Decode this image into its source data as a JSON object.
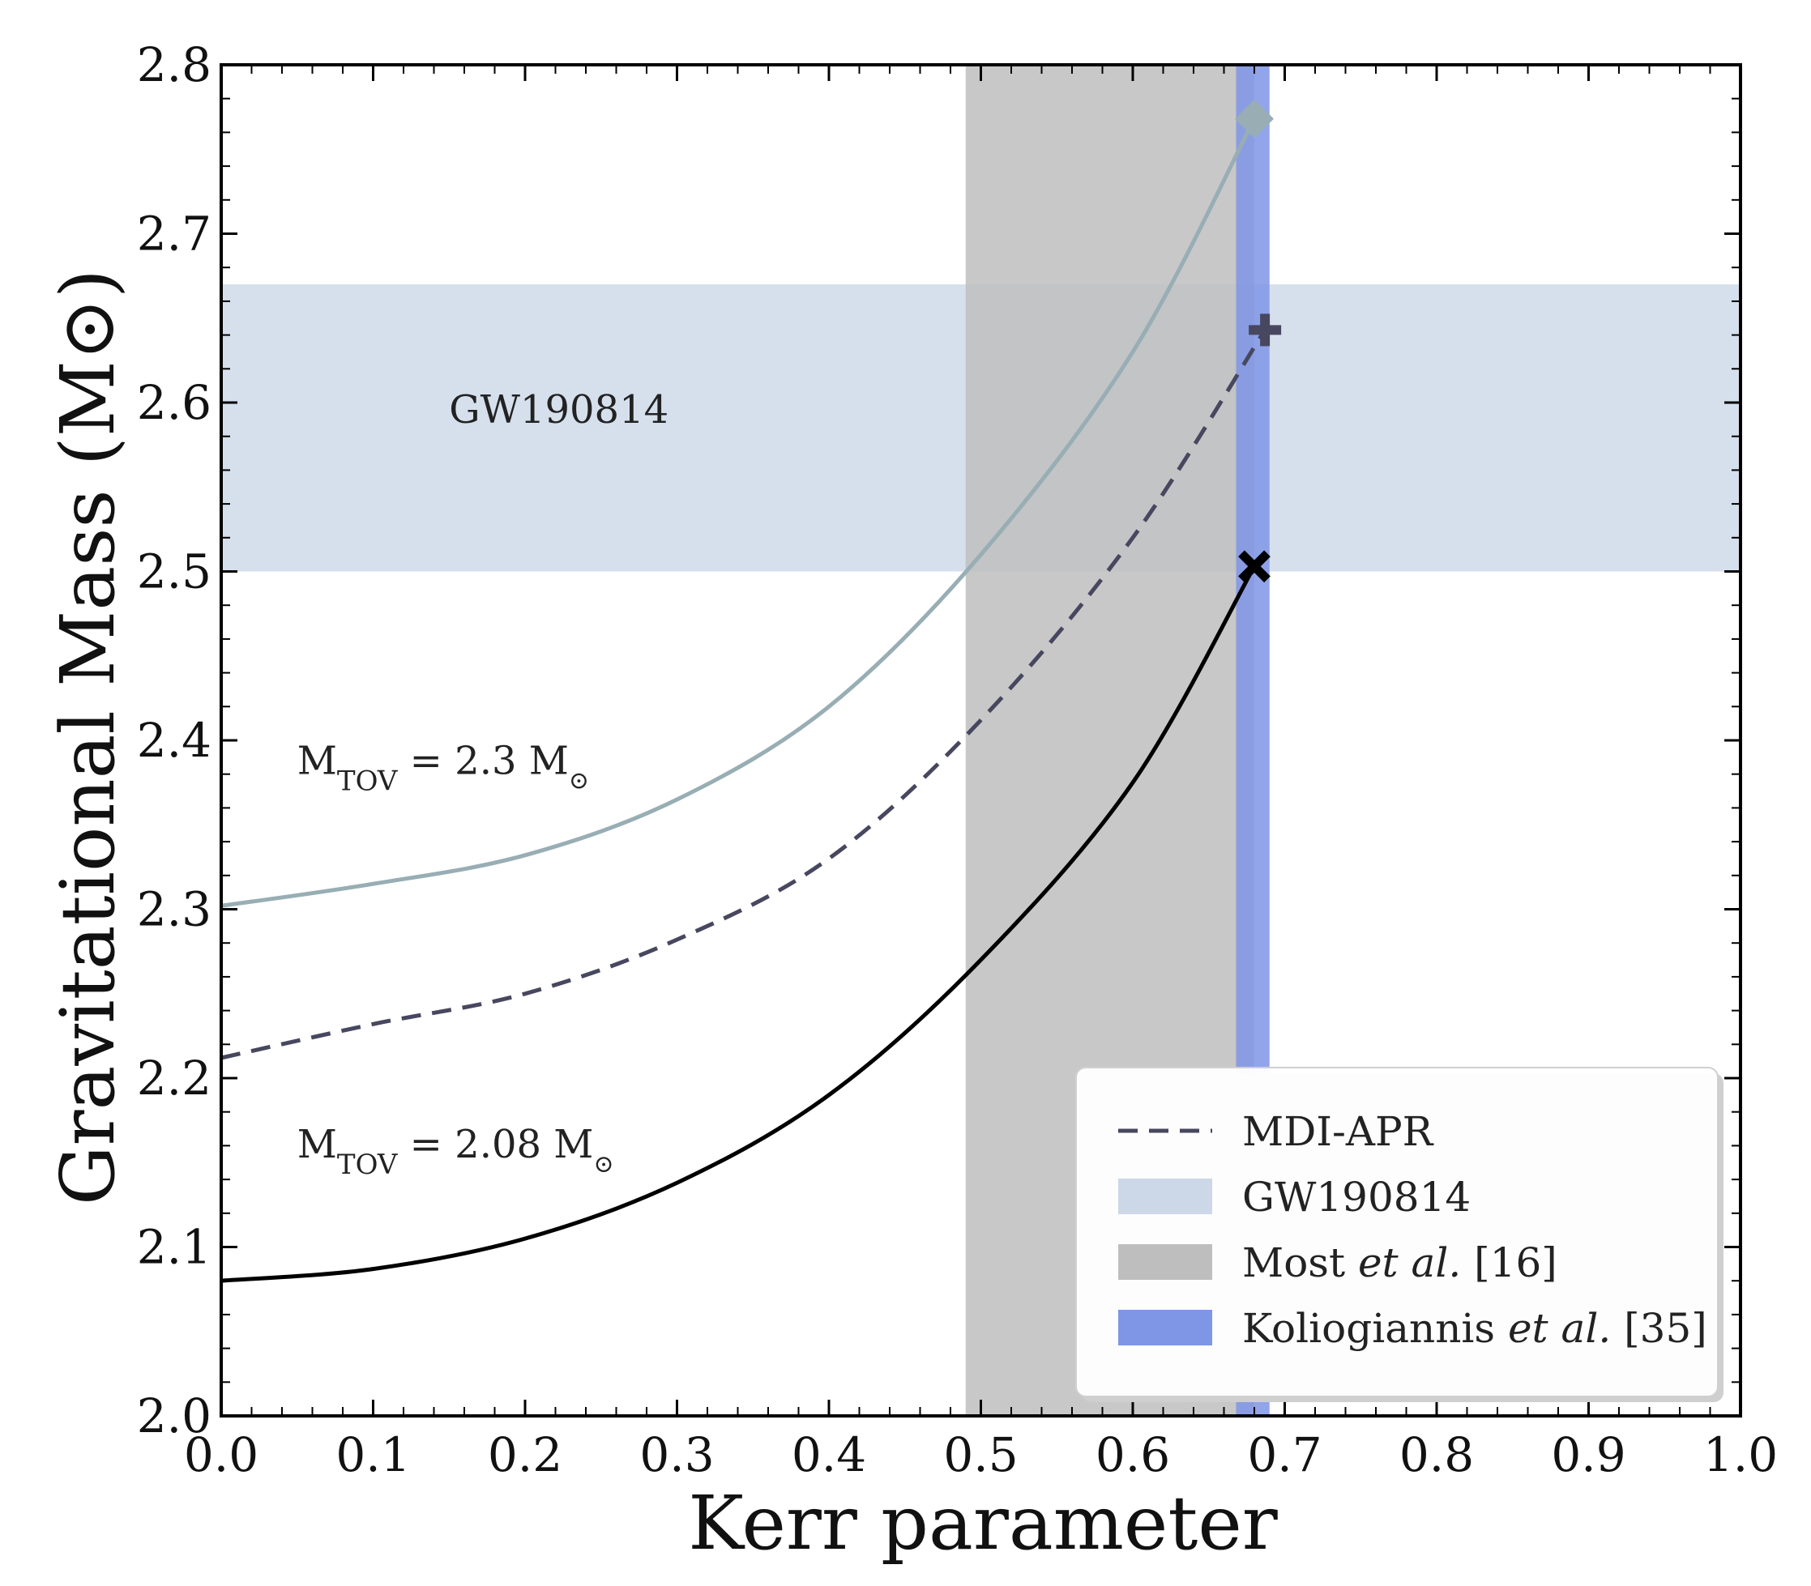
{
  "chart_data": {
    "type": "line",
    "title": "",
    "xlabel": "Kerr parameter",
    "ylabel": "Gravitational Mass (M⊙)",
    "xlim": [
      0.0,
      1.0
    ],
    "ylim": [
      2.0,
      2.8
    ],
    "x_ticks": [
      "0.0",
      "0.1",
      "0.2",
      "0.3",
      "0.4",
      "0.5",
      "0.6",
      "0.7",
      "0.8",
      "0.9",
      "1.0"
    ],
    "y_ticks": [
      "2.0",
      "2.1",
      "2.2",
      "2.3",
      "2.4",
      "2.5",
      "2.6",
      "2.7",
      "2.8"
    ],
    "series": [
      {
        "name": "M_TOV = 2.3 M⊙",
        "style": "solid",
        "color": "#98aeb4",
        "x": [
          0.0,
          0.1,
          0.2,
          0.3,
          0.4,
          0.5,
          0.6,
          0.68
        ],
        "y": [
          2.302,
          2.315,
          2.332,
          2.365,
          2.42,
          2.51,
          2.63,
          2.768
        ],
        "end_marker": "diamond"
      },
      {
        "name": "MDI-APR",
        "style": "dashed",
        "color": "#47475f",
        "x": [
          0.0,
          0.1,
          0.2,
          0.3,
          0.4,
          0.5,
          0.6,
          0.687
        ],
        "y": [
          2.212,
          2.232,
          2.25,
          2.282,
          2.33,
          2.412,
          2.52,
          2.643
        ],
        "end_marker": "plus"
      },
      {
        "name": "M_TOV = 2.08 M⊙",
        "style": "solid",
        "color": "#000000",
        "x": [
          0.0,
          0.1,
          0.2,
          0.3,
          0.4,
          0.5,
          0.6,
          0.68
        ],
        "y": [
          2.08,
          2.087,
          2.105,
          2.138,
          2.19,
          2.27,
          2.375,
          2.503
        ],
        "end_marker": "x"
      }
    ],
    "bands": [
      {
        "name": "GW190814",
        "orientation": "horizontal",
        "range": [
          2.5,
          2.67
        ],
        "color": "#ccd8e8"
      },
      {
        "name": "Most et al. [16]",
        "orientation": "vertical",
        "range": [
          0.49,
          0.68
        ],
        "color": "#bebebe"
      },
      {
        "name": "Koliogiannis et al. [35]",
        "orientation": "vertical",
        "range": [
          0.668,
          0.69
        ],
        "color": "#7f95e6"
      }
    ],
    "annotations": [
      {
        "text": "GW190814",
        "x": 0.15,
        "y": 2.588
      },
      {
        "text_main": "M",
        "text_sub": "TOV",
        "text_value": " = 2.3 M",
        "text_sun": "⊙",
        "x": 0.05,
        "y": 2.38
      },
      {
        "text_main": "M",
        "text_sub": "TOV",
        "text_value": " = 2.08 M",
        "text_sun": "⊙",
        "x": 0.05,
        "y": 2.153
      }
    ],
    "legend": {
      "position": "lower-right",
      "entries": [
        {
          "label": "MDI-APR",
          "kind": "line-dashed",
          "color": "#47475f"
        },
        {
          "label": "GW190814",
          "kind": "patch",
          "color": "#ccd8e8"
        },
        {
          "label_main": "Most ",
          "label_italic": "et al.",
          "label_tail": " [16]",
          "kind": "patch",
          "color": "#bebebe"
        },
        {
          "label_main": "Koliogiannis ",
          "label_italic": "et al.",
          "label_tail": " [35]",
          "kind": "patch",
          "color": "#7f95e6"
        }
      ]
    }
  }
}
